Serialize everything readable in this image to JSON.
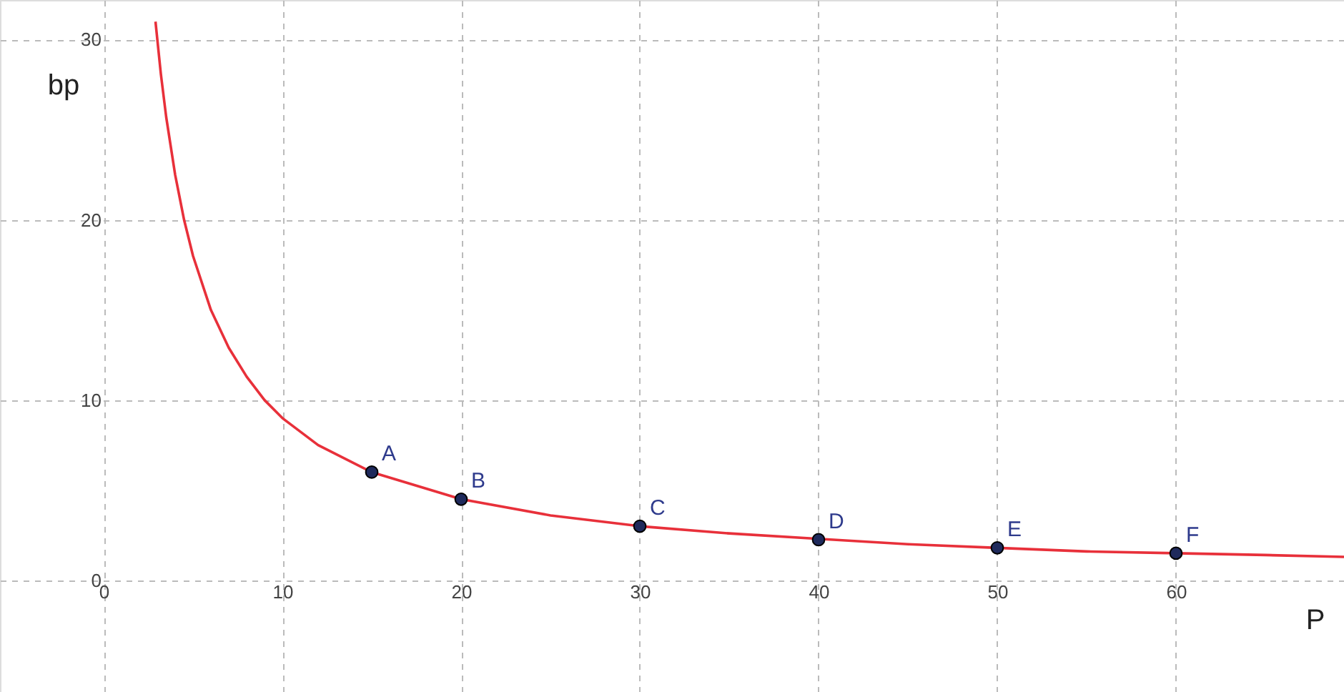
{
  "chart_data": {
    "type": "line",
    "xlabel": "P",
    "ylabel": "bp",
    "xlim": [
      -5.8,
      69.4
    ],
    "ylim": [
      -6.2,
      32.2
    ],
    "xticks": [
      0,
      10,
      20,
      30,
      40,
      50,
      60
    ],
    "yticks": [
      0,
      10,
      20,
      30
    ],
    "grid": true,
    "line_style": "solid",
    "series": [
      {
        "color": "#e8303a",
        "marker": "none",
        "x": [
          2.9,
          3.2,
          3.5,
          4,
          4.5,
          5,
          6,
          7,
          8,
          9,
          10,
          12,
          15,
          20,
          25,
          30,
          35,
          40,
          45,
          50,
          55,
          60,
          65,
          69.4
        ],
        "values": [
          31,
          28.1,
          25.7,
          22.5,
          20,
          18,
          15,
          12.9,
          11.3,
          10,
          9,
          7.5,
          6,
          4.5,
          3.6,
          3,
          2.6,
          2.3,
          2,
          1.8,
          1.6,
          1.5,
          1.4,
          1.3
        ]
      },
      {
        "type": "scatter",
        "color": "#1f2a5c",
        "marker": "circle",
        "x": [
          15,
          20,
          30,
          40,
          50,
          60
        ],
        "values": [
          6,
          4.5,
          3,
          2.25,
          1.8,
          1.5
        ]
      }
    ],
    "annotations": [
      {
        "text": "A",
        "x": 15,
        "y": 6
      },
      {
        "text": "B",
        "x": 20,
        "y": 4.5
      },
      {
        "text": "C",
        "x": 30,
        "y": 3
      },
      {
        "text": "D",
        "x": 40,
        "y": 2.25
      },
      {
        "text": "E",
        "x": 50,
        "y": 1.8
      },
      {
        "text": "F",
        "x": 60,
        "y": 1.5
      }
    ]
  }
}
